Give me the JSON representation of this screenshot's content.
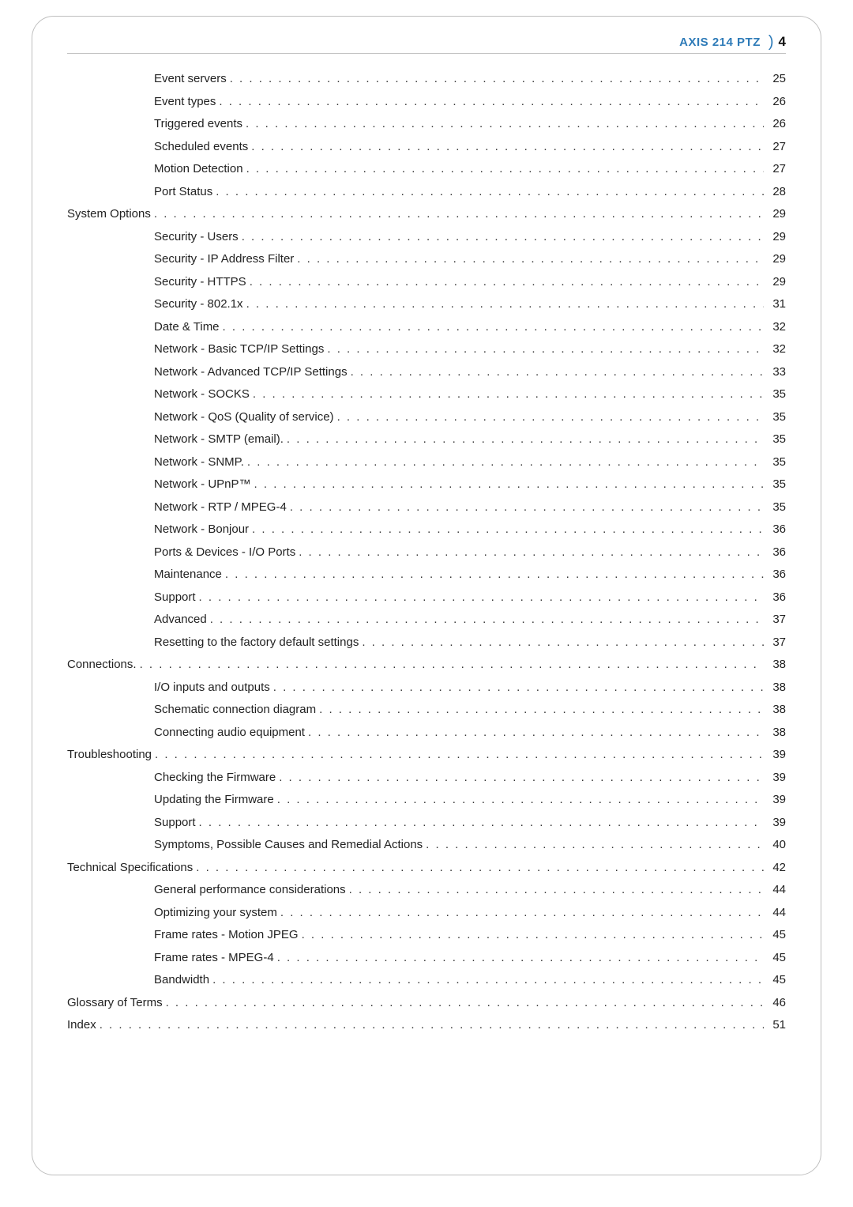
{
  "header": {
    "title": "AXIS 214 PTZ",
    "page_number": "4",
    "title_color": "#2e7bb8",
    "border_color": "#bfbfbf"
  },
  "toc": [
    {
      "label": "Event servers",
      "page": "25",
      "indent": 1
    },
    {
      "label": "Event types",
      "page": "26",
      "indent": 1
    },
    {
      "label": "Triggered events",
      "page": "26",
      "indent": 1
    },
    {
      "label": "Scheduled events",
      "page": "27",
      "indent": 1
    },
    {
      "label": "Motion Detection",
      "page": "27",
      "indent": 1
    },
    {
      "label": "Port Status",
      "page": "28",
      "indent": 1
    },
    {
      "label": "System Options",
      "page": "29",
      "indent": 0
    },
    {
      "label": "Security - Users",
      "page": "29",
      "indent": 1
    },
    {
      "label": "Security - IP Address Filter",
      "page": "29",
      "indent": 1
    },
    {
      "label": "Security - HTTPS",
      "page": "29",
      "indent": 1
    },
    {
      "label": "Security - 802.1x",
      "page": "31",
      "indent": 1
    },
    {
      "label": "Date & Time",
      "page": "32",
      "indent": 1
    },
    {
      "label": "Network - Basic TCP/IP Settings",
      "page": "32",
      "indent": 1
    },
    {
      "label": "Network - Advanced TCP/IP Settings",
      "page": "33",
      "indent": 1
    },
    {
      "label": "Network - SOCKS",
      "page": "35",
      "indent": 1
    },
    {
      "label": "Network - QoS (Quality of service)",
      "page": "35",
      "indent": 1
    },
    {
      "label": "Network - SMTP (email).",
      "page": "35",
      "indent": 1
    },
    {
      "label": "Network - SNMP.",
      "page": "35",
      "indent": 1
    },
    {
      "label": "Network - UPnP™",
      "page": "35",
      "indent": 1
    },
    {
      "label": "Network - RTP / MPEG-4",
      "page": "35",
      "indent": 1
    },
    {
      "label": "Network - Bonjour",
      "page": "36",
      "indent": 1
    },
    {
      "label": "Ports & Devices - I/O Ports",
      "page": "36",
      "indent": 1
    },
    {
      "label": "Maintenance",
      "page": "36",
      "indent": 1
    },
    {
      "label": "Support",
      "page": "36",
      "indent": 1
    },
    {
      "label": "Advanced",
      "page": "37",
      "indent": 1
    },
    {
      "label": "Resetting to the factory default settings",
      "page": "37",
      "indent": 1
    },
    {
      "label": "Connections.",
      "page": "38",
      "indent": 0
    },
    {
      "label": "I/O inputs and outputs",
      "page": "38",
      "indent": 1
    },
    {
      "label": "Schematic connection diagram",
      "page": "38",
      "indent": 1
    },
    {
      "label": "Connecting audio equipment",
      "page": "38",
      "indent": 1
    },
    {
      "label": "Troubleshooting",
      "page": "39",
      "indent": 0
    },
    {
      "label": "Checking the Firmware",
      "page": "39",
      "indent": 1
    },
    {
      "label": "Updating the Firmware",
      "page": "39",
      "indent": 1
    },
    {
      "label": "Support",
      "page": "39",
      "indent": 1
    },
    {
      "label": "Symptoms, Possible Causes and Remedial Actions",
      "page": "40",
      "indent": 1
    },
    {
      "label": "Technical Specifications",
      "page": "42",
      "indent": 0
    },
    {
      "label": "General performance considerations",
      "page": "44",
      "indent": 1
    },
    {
      "label": "Optimizing your system",
      "page": "44",
      "indent": 1
    },
    {
      "label": "Frame rates - Motion JPEG",
      "page": "45",
      "indent": 1
    },
    {
      "label": "Frame rates - MPEG-4",
      "page": "45",
      "indent": 1
    },
    {
      "label": "Bandwidth",
      "page": "45",
      "indent": 1
    },
    {
      "label": "Glossary of Terms",
      "page": "46",
      "indent": 0
    },
    {
      "label": "Index",
      "page": "51",
      "indent": 0
    }
  ]
}
